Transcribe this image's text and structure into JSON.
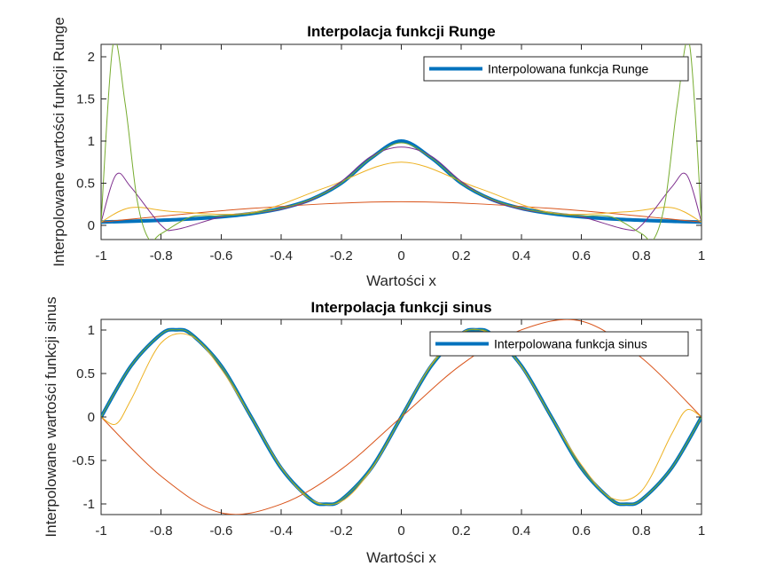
{
  "chart_data": [
    {
      "type": "line",
      "title": "Interpolacja funkcji Runge",
      "xlabel": "Wartości x",
      "ylabel": "Interpolowane wartości funkcji Runge",
      "xlim": [
        -1,
        1
      ],
      "ylim": [
        -0.17,
        2.15
      ],
      "xticks": [
        -1,
        -0.8,
        -0.6,
        -0.4,
        -0.2,
        0,
        0.2,
        0.4,
        0.6,
        0.8,
        1
      ],
      "xtick_labels": [
        "-1",
        "-0.8",
        "-0.6",
        "-0.4",
        "-0.2",
        "0",
        "0.2",
        "0.4",
        "0.6",
        "0.8",
        "1"
      ],
      "yticks": [
        0,
        0.5,
        1,
        1.5,
        2
      ],
      "ytick_labels": [
        "0",
        "0.5",
        "1",
        "1.5",
        "2"
      ],
      "legend": {
        "location": "top-right",
        "entries": [
          "Interpolowana funkcja Runge"
        ]
      },
      "grid": false,
      "series": [
        {
          "name": "Interpolowana funkcja Runge",
          "color": "#0072BD",
          "emphasis": "thick",
          "x": [
            -1,
            -0.9,
            -0.8,
            -0.7,
            -0.6,
            -0.5,
            -0.4,
            -0.3,
            -0.2,
            -0.1,
            0,
            0.1,
            0.2,
            0.3,
            0.4,
            0.5,
            0.6,
            0.7,
            0.8,
            0.9,
            1
          ],
          "values": [
            0.038,
            0.047,
            0.059,
            0.075,
            0.1,
            0.138,
            0.2,
            0.308,
            0.5,
            0.8,
            1,
            0.8,
            0.5,
            0.308,
            0.2,
            0.138,
            0.1,
            0.075,
            0.059,
            0.047,
            0.038
          ]
        },
        {
          "color": "#D95319",
          "x": [
            -1,
            -0.5,
            0,
            0.5,
            1
          ],
          "values": [
            0.038,
            0.2,
            0.28,
            0.2,
            0.038
          ]
        },
        {
          "color": "#EDB120",
          "x": [
            -1,
            -0.9,
            -0.75,
            -0.5,
            -0.25,
            0,
            0.25,
            0.5,
            0.75,
            0.9,
            1
          ],
          "values": [
            0.038,
            0.21,
            0.16,
            0.15,
            0.45,
            0.75,
            0.45,
            0.15,
            0.16,
            0.21,
            0.038
          ]
        },
        {
          "color": "#7E2F8E",
          "x": [
            -1,
            -0.95,
            -0.9,
            -0.8,
            -0.75,
            -0.6,
            -0.5,
            -0.4,
            -0.3,
            -0.2,
            -0.1,
            0,
            0.1,
            0.2,
            0.3,
            0.4,
            0.5,
            0.6,
            0.75,
            0.8,
            0.9,
            0.95,
            1
          ],
          "values": [
            0.038,
            0.6,
            0.45,
            0.0,
            -0.05,
            0.1,
            0.14,
            0.19,
            0.3,
            0.52,
            0.82,
            0.93,
            0.82,
            0.52,
            0.3,
            0.19,
            0.14,
            0.1,
            -0.05,
            0.0,
            0.45,
            0.6,
            0.038
          ]
        },
        {
          "color": "#77AC30",
          "x": [
            -1,
            -0.96,
            -0.92,
            -0.88,
            -0.84,
            -0.8,
            -0.7,
            -0.6,
            -0.5,
            -0.4,
            -0.3,
            -0.2,
            -0.1,
            0,
            0.1,
            0.2,
            0.3,
            0.4,
            0.5,
            0.6,
            0.7,
            0.8,
            0.84,
            0.88,
            0.92,
            0.96,
            1
          ],
          "values": [
            0.038,
            2.15,
            1.45,
            0.3,
            -0.17,
            -0.1,
            0.1,
            0.11,
            0.14,
            0.2,
            0.31,
            0.5,
            0.8,
            0.98,
            0.8,
            0.5,
            0.31,
            0.2,
            0.14,
            0.11,
            0.1,
            -0.1,
            -0.17,
            0.3,
            1.45,
            2.15,
            0.038
          ]
        }
      ]
    },
    {
      "type": "line",
      "title": "Interpolacja funkcji sinus",
      "xlabel": "Wartości x",
      "ylabel": "Interpolowane wartości funkcji sinus",
      "xlim": [
        -1,
        1
      ],
      "ylim": [
        -1.12,
        1.12
      ],
      "xticks": [
        -1,
        -0.8,
        -0.6,
        -0.4,
        -0.2,
        0,
        0.2,
        0.4,
        0.6,
        0.8,
        1
      ],
      "xtick_labels": [
        "-1",
        "-0.8",
        "-0.6",
        "-0.4",
        "-0.2",
        "0",
        "0.2",
        "0.4",
        "0.6",
        "0.8",
        "1"
      ],
      "yticks": [
        -1,
        -0.5,
        0,
        0.5,
        1
      ],
      "ytick_labels": [
        "-1",
        "-0.5",
        "0",
        "0.5",
        "1"
      ],
      "legend": {
        "location": "top-right",
        "entries": [
          "Interpolowana funkcja sinus"
        ]
      },
      "grid": false,
      "series": [
        {
          "name": "Interpolowana funkcja sinus",
          "color": "#0072BD",
          "emphasis": "thick",
          "x": [
            -1,
            -0.9,
            -0.8,
            -0.75,
            -0.7,
            -0.6,
            -0.5,
            -0.4,
            -0.3,
            -0.25,
            -0.2,
            -0.1,
            0,
            0.1,
            0.2,
            0.25,
            0.3,
            0.4,
            0.5,
            0.6,
            0.7,
            0.75,
            0.8,
            0.9,
            1
          ],
          "values": [
            0,
            0.588,
            0.951,
            1,
            0.951,
            0.588,
            0,
            -0.588,
            -0.951,
            -1,
            -0.951,
            -0.588,
            0,
            0.588,
            0.951,
            1,
            0.951,
            0.588,
            0,
            -0.588,
            -0.951,
            -1,
            -0.951,
            -0.588,
            0
          ]
        },
        {
          "color": "#D95319",
          "x": [
            -1,
            -0.8,
            -0.6,
            -0.4,
            -0.2,
            0,
            0.2,
            0.4,
            0.6,
            0.8,
            1
          ],
          "values": [
            0,
            -0.68,
            -1.1,
            -1.0,
            -0.6,
            0,
            0.6,
            1.0,
            1.1,
            0.68,
            0
          ]
        },
        {
          "color": "#EDB120",
          "x": [
            -1,
            -0.95,
            -0.9,
            -0.8,
            -0.7,
            -0.6,
            -0.5,
            -0.4,
            -0.3,
            -0.2,
            -0.1,
            0,
            0.1,
            0.2,
            0.3,
            0.4,
            0.5,
            0.6,
            0.7,
            0.8,
            0.9,
            0.95,
            1
          ],
          "values": [
            0,
            -0.08,
            0.2,
            0.85,
            0.93,
            0.55,
            0,
            -0.58,
            -0.95,
            -0.97,
            -0.6,
            0,
            0.6,
            0.97,
            0.95,
            0.58,
            0,
            -0.55,
            -0.93,
            -0.85,
            -0.2,
            0.08,
            0
          ]
        },
        {
          "color": "#77AC30",
          "x": [
            -1,
            -0.9,
            -0.8,
            -0.75,
            -0.7,
            -0.6,
            -0.5,
            -0.4,
            -0.3,
            -0.25,
            -0.2,
            -0.1,
            0,
            0.1,
            0.2,
            0.25,
            0.3,
            0.4,
            0.5,
            0.6,
            0.7,
            0.75,
            0.8,
            0.9,
            1
          ],
          "values": [
            0,
            0.588,
            0.951,
            1,
            0.951,
            0.588,
            0,
            -0.588,
            -0.951,
            -1,
            -0.951,
            -0.588,
            0,
            0.588,
            0.951,
            1,
            0.951,
            0.588,
            0,
            -0.588,
            -0.951,
            -1,
            -0.951,
            -0.588,
            0
          ]
        }
      ]
    }
  ]
}
